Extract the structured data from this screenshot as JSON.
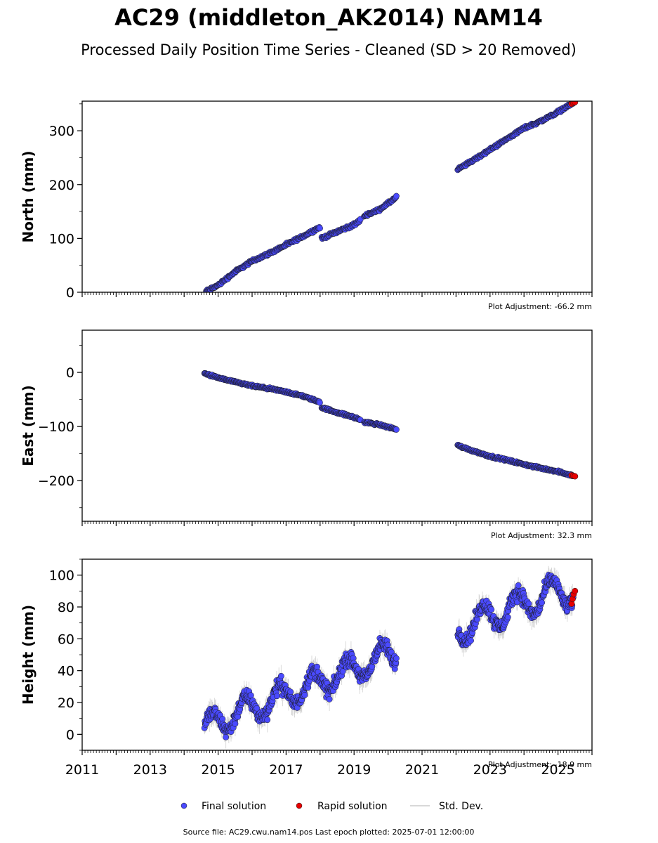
{
  "figure": {
    "title": "AC29 (middleton_AK2014) NAM14",
    "subtitle": "Processed Daily Position Time Series - Cleaned (SD > 20 Removed)",
    "source_text": "Source file: AC29.cwu.nam14.pos  Last epoch plotted: 2025-07-01 12:00:00"
  },
  "legend": {
    "final": "Final solution",
    "rapid": "Rapid solution",
    "std": "Std. Dev."
  },
  "colors": {
    "final": "#4a4aff",
    "rapid": "#e60000",
    "std": "#bbbbbb",
    "edge": "#1a1a1a"
  },
  "chart_data": [
    {
      "type": "scatter",
      "ylabel": "North (mm)",
      "adjustment": "Plot Adjustment: -66.2 mm",
      "xlim": [
        2011,
        2026
      ],
      "ylim": [
        0,
        355
      ],
      "yticks": [
        0,
        100,
        200,
        300
      ],
      "segments": [
        {
          "x": [
            2014.65,
            2015.0,
            2015.5,
            2016.0,
            2016.5,
            2017.0,
            2017.5,
            2018.0
          ],
          "y": [
            2,
            13,
            38,
            58,
            72,
            88,
            104,
            121
          ],
          "noise": 2
        },
        {
          "x": [
            2018.05,
            2018.5,
            2019.0,
            2019.2
          ],
          "y": [
            100,
            113,
            125,
            135
          ],
          "noise": 2
        },
        {
          "x": [
            2019.3,
            2019.7,
            2020.0,
            2020.25
          ],
          "y": [
            142,
            152,
            165,
            177
          ],
          "noise": 2
        },
        {
          "x": [
            2022.05,
            2022.5,
            2023.0,
            2023.5,
            2024.0,
            2024.5,
            2025.0,
            2025.45
          ],
          "y": [
            228,
            245,
            265,
            285,
            305,
            318,
            335,
            352
          ],
          "noise": 2
        }
      ],
      "rapid": {
        "x": [
          2025.4,
          2025.45,
          2025.5
        ],
        "y": [
          350,
          352,
          353
        ]
      }
    },
    {
      "type": "scatter",
      "ylabel": "East (mm)",
      "adjustment": "Plot Adjustment: 32.3 mm",
      "xlim": [
        2011,
        2026
      ],
      "ylim": [
        -275,
        78
      ],
      "yticks": [
        0,
        -100,
        -200
      ],
      "segments": [
        {
          "x": [
            2014.6,
            2015.0,
            2015.5,
            2016.0,
            2016.5,
            2017.0,
            2017.5,
            2018.0
          ],
          "y": [
            -2,
            -10,
            -18,
            -25,
            -30,
            -36,
            -44,
            -55
          ],
          "noise": 1.5
        },
        {
          "x": [
            2018.05,
            2018.5,
            2019.0,
            2019.2
          ],
          "y": [
            -65,
            -74,
            -83,
            -88
          ],
          "noise": 1.5
        },
        {
          "x": [
            2019.3,
            2019.7,
            2020.0,
            2020.25
          ],
          "y": [
            -92,
            -96,
            -101,
            -105
          ],
          "noise": 1.5
        },
        {
          "x": [
            2022.05,
            2022.5,
            2023.0,
            2023.5,
            2024.0,
            2024.5,
            2025.0,
            2025.45
          ],
          "y": [
            -135,
            -145,
            -155,
            -162,
            -170,
            -177,
            -183,
            -191
          ],
          "noise": 1.5
        }
      ],
      "rapid": {
        "x": [
          2025.4,
          2025.45,
          2025.5
        ],
        "y": [
          -190,
          -191,
          -192
        ]
      }
    },
    {
      "type": "scatter",
      "ylabel": "Height (mm)",
      "adjustment": "Plot Adjustment: -18.9 mm",
      "xlim": [
        2011,
        2026
      ],
      "ylim": [
        -10,
        110
      ],
      "yticks": [
        0,
        20,
        40,
        60,
        80,
        100
      ],
      "xticks": [
        2011,
        2013,
        2015,
        2017,
        2019,
        2021,
        2023,
        2025
      ],
      "segments": [
        {
          "x": [
            2014.6,
            2015.0,
            2015.5,
            2016.0,
            2016.5,
            2017.0,
            2017.5,
            2018.0,
            2018.5,
            2019.0,
            2019.5,
            2020.0,
            2020.25
          ],
          "y": [
            3,
            8,
            13,
            17,
            20,
            25,
            29,
            33,
            37,
            41,
            45,
            50,
            52
          ],
          "seasonal": 8,
          "noise": 4
        },
        {
          "x": [
            2022.05,
            2022.5,
            2023.0,
            2023.5,
            2024.0,
            2024.5,
            2025.0,
            2025.45
          ],
          "y": [
            66,
            70,
            74,
            78,
            82,
            86,
            89,
            90
          ],
          "seasonal": 9,
          "noise": 4
        }
      ],
      "rapid": {
        "x": [
          2025.4,
          2025.43,
          2025.46,
          2025.5
        ],
        "y": [
          82,
          85,
          88,
          90
        ]
      }
    }
  ]
}
